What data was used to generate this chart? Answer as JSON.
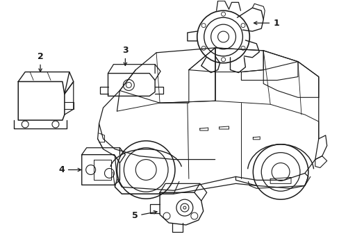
{
  "background_color": "#ffffff",
  "line_color": "#1a1a1a",
  "line_width": 0.9,
  "label_fontsize": 9,
  "figsize": [
    4.89,
    3.6
  ],
  "dpi": 100
}
